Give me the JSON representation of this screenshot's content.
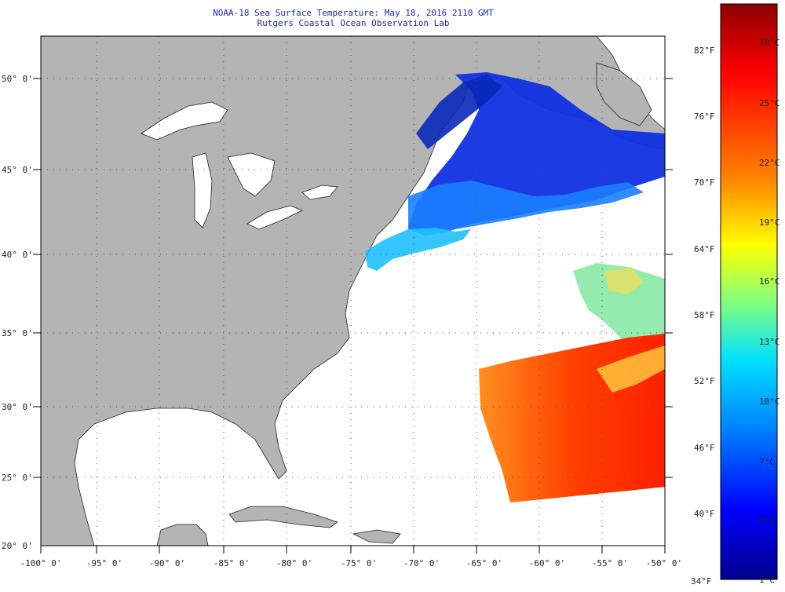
{
  "header": {
    "title": "NOAA-18 Sea Surface Temperature:  May 18, 2016 2110 GMT",
    "subtitle": "Rutgers Coastal Ocean Observation Lab"
  },
  "map": {
    "region": "US East Coast, Gulf of Mexico and western North Atlantic",
    "lon_range": [
      -100,
      -50
    ],
    "lat_range": [
      20,
      52
    ],
    "lon_labels": [
      "-100° 0'",
      "-95° 0'",
      "-90° 0'",
      "-85° 0'",
      "-80° 0'",
      "-75° 0'",
      "-70° 0'",
      "-65° 0'",
      "-60° 0'",
      "-55° 0'",
      "-50° 0'"
    ],
    "lat_labels": [
      "50° 0'",
      "45° 0'",
      "40° 0'",
      "35° 0'",
      "30° 0'",
      "25° 0'",
      "20° 0'"
    ],
    "colors": {
      "land": "#b4b4b4",
      "water_no_data": "#ffffff",
      "grid": "#555555",
      "title": "#1a2aa8"
    }
  },
  "colorbar": {
    "fahrenheit_labels": [
      "82°F",
      "76°F",
      "70°F",
      "64°F",
      "58°F",
      "52°F",
      "46°F",
      "40°F",
      "34°F"
    ],
    "celsius_labels": [
      "28°C",
      "25°C",
      "22°C",
      "19°C",
      "16°C",
      "13°C",
      "10°C",
      "7°C",
      "4°C",
      "1°C"
    ],
    "colors_top_to_bottom": [
      "#8b0000",
      "#ff0000",
      "#ff8000",
      "#ffff00",
      "#80ff80",
      "#00e0ff",
      "#0080ff",
      "#0000ff",
      "#00008b"
    ]
  }
}
